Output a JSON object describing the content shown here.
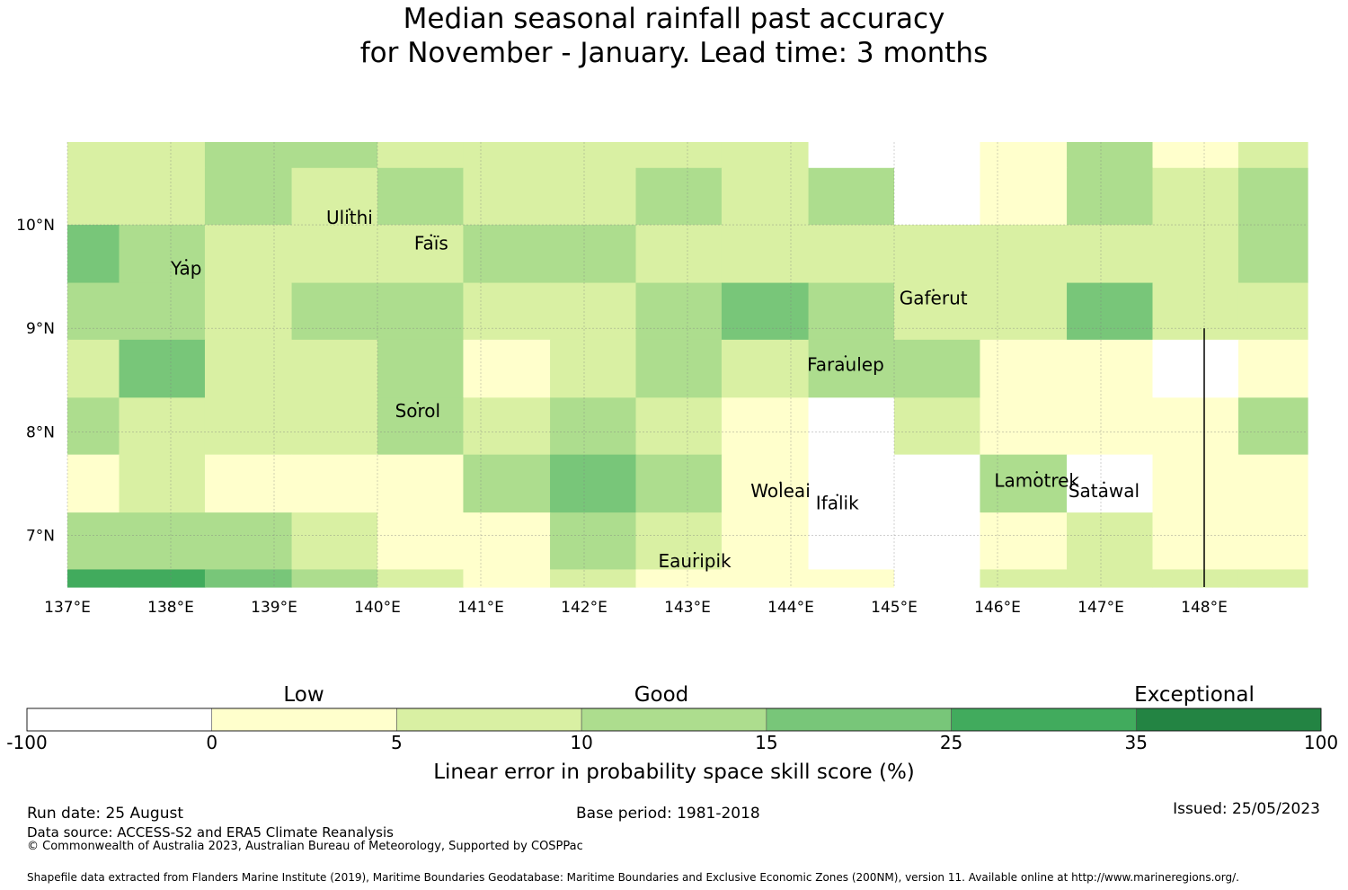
{
  "title": {
    "line1": "Median seasonal rainfall past accuracy",
    "line2": "for November - January. Lead time: 3 months"
  },
  "map": {
    "lon_range": [
      137.0,
      149.0
    ],
    "lat_range": [
      6.5,
      10.8
    ],
    "lon_ticks": [
      {
        "v": 137,
        "label": "137°E"
      },
      {
        "v": 138,
        "label": "138°E"
      },
      {
        "v": 139,
        "label": "139°E"
      },
      {
        "v": 140,
        "label": "140°E"
      },
      {
        "v": 141,
        "label": "141°E"
      },
      {
        "v": 142,
        "label": "142°E"
      },
      {
        "v": 143,
        "label": "143°E"
      },
      {
        "v": 144,
        "label": "144°E"
      },
      {
        "v": 145,
        "label": "145°E"
      },
      {
        "v": 146,
        "label": "146°E"
      },
      {
        "v": 147,
        "label": "147°E"
      },
      {
        "v": 148,
        "label": "148°E"
      }
    ],
    "lat_ticks": [
      {
        "v": 10,
        "label": "10°N"
      },
      {
        "v": 9,
        "label": "9°N"
      },
      {
        "v": 8,
        "label": "8°N"
      },
      {
        "v": 7,
        "label": "7°N"
      }
    ],
    "grid_lines": true,
    "col_edges": [
      137.0,
      137.5,
      138.33,
      139.17,
      140.0,
      140.83,
      141.67,
      142.5,
      143.33,
      144.17,
      145.0,
      145.83,
      146.67,
      147.5,
      148.33,
      149.0
    ],
    "row_edges": [
      10.8,
      10.55,
      10.0,
      9.44,
      8.89,
      8.33,
      7.78,
      7.22,
      6.67,
      6.5
    ],
    "cells": [
      [
        2,
        2,
        3,
        3,
        2,
        2,
        2,
        2,
        2,
        0,
        0,
        1,
        3,
        1,
        2
      ],
      [
        2,
        2,
        3,
        2,
        3,
        2,
        2,
        3,
        2,
        3,
        0,
        1,
        3,
        2,
        3
      ],
      [
        4,
        3,
        2,
        2,
        2,
        3,
        3,
        2,
        2,
        2,
        2,
        2,
        2,
        2,
        3
      ],
      [
        3,
        3,
        2,
        3,
        3,
        2,
        2,
        3,
        4,
        3,
        2,
        2,
        4,
        2,
        2
      ],
      [
        2,
        4,
        2,
        2,
        3,
        1,
        2,
        3,
        2,
        3,
        3,
        1,
        1,
        0,
        1
      ],
      [
        3,
        2,
        2,
        2,
        3,
        2,
        3,
        2,
        1,
        0,
        2,
        1,
        1,
        1,
        3
      ],
      [
        1,
        2,
        1,
        1,
        1,
        3,
        4,
        3,
        1,
        0,
        0,
        3,
        0,
        1,
        1
      ],
      [
        3,
        3,
        3,
        2,
        1,
        1,
        3,
        2,
        1,
        0,
        0,
        1,
        2,
        1,
        1
      ],
      [
        5,
        5,
        4,
        3,
        2,
        1,
        2,
        1,
        1,
        1,
        0,
        2,
        2,
        2,
        2
      ]
    ],
    "places": [
      {
        "name": "Yap",
        "lon": 138.15,
        "lat": 9.52
      },
      {
        "name": "Ulithi",
        "lon": 139.73,
        "lat": 10.01
      },
      {
        "name": "Faïs",
        "lon": 140.52,
        "lat": 9.76
      },
      {
        "name": "Gaferut",
        "lon": 145.38,
        "lat": 9.23
      },
      {
        "name": "Faraulep",
        "lon": 144.53,
        "lat": 8.59
      },
      {
        "name": "Sorol",
        "lon": 140.39,
        "lat": 8.14
      },
      {
        "name": "Woleai",
        "lon": 143.9,
        "lat": 7.37
      },
      {
        "name": "Ifalik",
        "lon": 144.45,
        "lat": 7.25
      },
      {
        "name": "Lamotrek",
        "lon": 146.38,
        "lat": 7.47
      },
      {
        "name": "Satawal",
        "lon": 147.03,
        "lat": 7.37
      },
      {
        "name": "Eauripik",
        "lon": 143.07,
        "lat": 6.69
      }
    ],
    "boundary_line": {
      "lon": 148.0,
      "lat_from": 9.0,
      "lat_to": 6.5
    }
  },
  "colorbar": {
    "categories": [
      "Low",
      "Good",
      "Exceptional"
    ],
    "bounds": [
      "-100",
      "0",
      "5",
      "10",
      "15",
      "25",
      "35",
      "100"
    ],
    "colors": [
      "#ffffff",
      "#ffffcc",
      "#d9f0a3",
      "#addd8e",
      "#78c679",
      "#41ab5d",
      "#238443"
    ],
    "label": "Linear error in probability space skill score (%)"
  },
  "footer": {
    "run_date": "Run date: 25 August",
    "base_period": "Base period: 1981-2018",
    "issued": "Issued: 25/05/2023",
    "data_source": "Data source: ACCESS-S2 and ERA5 Climate Reanalysis",
    "copyright": "© Commonwealth of Australia 2023, Australian Bureau of Meteorology, Supported by COSPPac",
    "shapefile": "Shapefile data extracted from Flanders Marine Institute (2019), Maritime Boundaries Geodatabase: Maritime Boundaries and Exclusive Economic Zones (200NM), version 11. Available online at http://www.marineregions.org/."
  }
}
